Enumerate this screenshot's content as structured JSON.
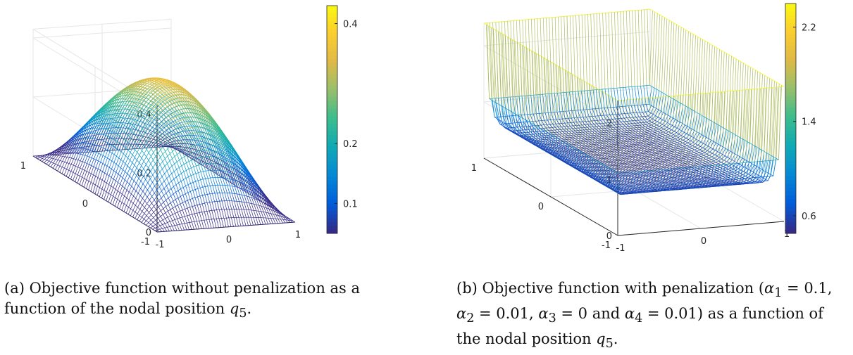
{
  "figures": [
    {
      "caption_prefix": "(a)",
      "caption_text": "Objective function without penalization as a function of the nodal position",
      "caption_var": "q",
      "caption_sub": "5",
      "caption_end": "."
    },
    {
      "caption_prefix": "(b)",
      "caption_text": "Objective function with penalization (α",
      "caption_parts": [
        {
          "sym": "α",
          "sub": "1",
          "val": " = 0.1, "
        },
        {
          "sym": "α",
          "sub": "2",
          "val": " = 0.01, "
        },
        {
          "sym": "α",
          "sub": "3",
          "val": " = 0 and "
        },
        {
          "sym": "α",
          "sub": "4",
          "val": " = 0.01) as a function of the nodal position "
        }
      ],
      "caption_var": "q",
      "caption_sub": "5",
      "caption_end": "."
    }
  ],
  "chart_data": [
    {
      "type": "surface",
      "function": "objective without penalization",
      "x_ticks": [
        "-1",
        "0",
        "1"
      ],
      "y_ticks": [
        "-1",
        "0",
        "1"
      ],
      "z_ticks": [
        "0",
        "0.2",
        "0.4"
      ],
      "zlim": [
        0,
        0.43
      ],
      "colorbar_ticks": [
        "0.1",
        "0.2",
        "0.4"
      ],
      "colorbar_range": [
        0.05,
        0.43
      ],
      "colormap": "parula",
      "grid": true,
      "shape": "dome with maximum ≈0.43 at the center, decaying toward the edges"
    },
    {
      "type": "surface",
      "function": "objective with penalization",
      "x_ticks": [
        "-1",
        "0",
        "1"
      ],
      "y_ticks": [
        "-1",
        "0",
        "1"
      ],
      "z_ticks": [
        "0",
        "1",
        "2"
      ],
      "zlim": [
        0,
        2.4
      ],
      "colorbar_ticks": [
        "0.6",
        "1.4",
        "2.2"
      ],
      "colorbar_range": [
        0.45,
        2.4
      ],
      "colormap": "parula",
      "grid": true,
      "shape": "bowl, low (~0.5) in the interior, rising steeply near the boundary with spikes at the corners"
    }
  ]
}
